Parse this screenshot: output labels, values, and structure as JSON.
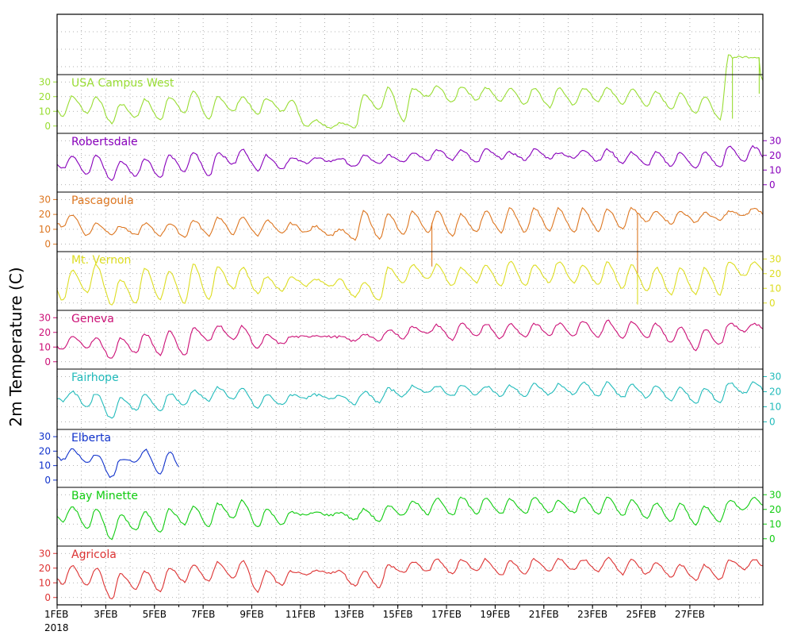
{
  "chart_data": {
    "type": "line",
    "ylabel": "2m Temperature (C)",
    "x_start_year": "2018",
    "x_ticks": [
      "1FEB",
      "3FEB",
      "5FEB",
      "7FEB",
      "9FEB",
      "11FEB",
      "13FEB",
      "15FEB",
      "17FEB",
      "19FEB",
      "21FEB",
      "23FEB",
      "25FEB",
      "27FEB"
    ],
    "x_range_days": [
      1,
      29
    ],
    "grid": true,
    "panel_ylim": [
      -5,
      35
    ],
    "panel_yticks": [
      0,
      10,
      20,
      30
    ],
    "series": [
      {
        "name": "USA Campus West",
        "color": "#99dd33",
        "axis_side": "left",
        "daily_min": [
          7,
          9,
          2,
          6,
          4,
          9,
          4,
          10,
          8,
          10,
          0,
          -1,
          -1,
          11,
          3,
          20,
          16,
          18,
          17,
          15,
          13,
          14,
          17,
          15,
          14,
          12,
          9,
          5,
          24
        ],
        "daily_max": [
          20,
          20,
          15,
          18,
          20,
          24,
          20,
          20,
          19,
          18,
          4,
          2,
          22,
          26,
          25,
          27,
          27,
          26,
          26,
          26,
          26,
          26,
          26,
          25,
          23,
          22,
          20,
          49,
          45
        ],
        "events": [
          {
            "type": "gap",
            "from_day": 10.3,
            "to_day": 10.6
          },
          {
            "type": "step",
            "day": 15.45,
            "from": 5,
            "to": 20
          },
          {
            "type": "drop",
            "day": 27.75,
            "to": 5
          },
          {
            "type": "high",
            "day_from": 27.8,
            "day_to": 28.85,
            "value": 47
          },
          {
            "type": "drop",
            "day": 28.85,
            "to": 22
          }
        ]
      },
      {
        "name": "Robertsdale",
        "color": "#8800bb",
        "axis_side": "right",
        "daily_min": [
          11,
          7,
          3,
          6,
          5,
          9,
          6,
          14,
          10,
          11,
          15,
          16,
          12,
          14,
          16,
          17,
          17,
          15,
          18,
          17,
          18,
          18,
          16,
          15,
          13,
          13,
          11,
          12,
          16
        ],
        "daily_max": [
          20,
          20,
          16,
          18,
          20,
          22,
          22,
          24,
          20,
          18,
          18,
          18,
          20,
          20,
          22,
          24,
          24,
          24,
          22,
          24,
          22,
          24,
          24,
          22,
          22,
          22,
          22,
          26,
          26
        ]
      },
      {
        "name": "Pascagoula",
        "color": "#dd7722",
        "axis_side": "left",
        "daily_min": [
          12,
          6,
          7,
          6,
          6,
          5,
          6,
          7,
          6,
          7,
          8,
          6,
          3,
          4,
          6,
          8,
          6,
          8,
          8,
          8,
          9,
          8,
          9,
          10,
          15,
          14,
          15,
          16,
          19
        ],
        "daily_max": [
          20,
          14,
          12,
          14,
          14,
          16,
          18,
          18,
          16,
          14,
          12,
          10,
          22,
          20,
          22,
          22,
          20,
          22,
          24,
          24,
          24,
          24,
          24,
          24,
          22,
          22,
          21,
          22,
          24
        ],
        "events": [
          {
            "type": "spike",
            "day": 15.4,
            "to": -15
          },
          {
            "type": "spike",
            "day": 23.85,
            "to": -25
          }
        ]
      },
      {
        "name": "Mt. Vernon",
        "color": "#dddd22",
        "axis_side": "right",
        "daily_min": [
          2,
          7,
          -1,
          0,
          3,
          0,
          3,
          10,
          7,
          8,
          12,
          12,
          4,
          2,
          14,
          16,
          12,
          14,
          12,
          12,
          14,
          14,
          12,
          10,
          8,
          6,
          6,
          6,
          18
        ],
        "daily_max": [
          22,
          26,
          16,
          24,
          22,
          26,
          24,
          24,
          18,
          18,
          16,
          16,
          14,
          24,
          26,
          26,
          24,
          26,
          28,
          26,
          28,
          26,
          28,
          26,
          24,
          24,
          24,
          28,
          28
        ],
        "events": [
          {
            "type": "spike",
            "day": 23.85,
            "to": -1
          }
        ]
      },
      {
        "name": "Geneva",
        "color": "#cc1177",
        "axis_side": "left",
        "daily_min": [
          8,
          10,
          2,
          6,
          5,
          4,
          14,
          15,
          9,
          12,
          17,
          17,
          14,
          14,
          16,
          19,
          15,
          17,
          16,
          17,
          18,
          18,
          17,
          16,
          16,
          13,
          8,
          12,
          21
        ],
        "daily_max": [
          17,
          16,
          16,
          19,
          21,
          23,
          25,
          24,
          18,
          17,
          18,
          17,
          19,
          22,
          24,
          25,
          26,
          26,
          26,
          26,
          26,
          28,
          28,
          27,
          26,
          24,
          22,
          26,
          26
        ]
      },
      {
        "name": "Fairhope",
        "color": "#22bbbb",
        "axis_side": "right",
        "daily_min": [
          14,
          10,
          2,
          8,
          7,
          11,
          14,
          15,
          9,
          11,
          16,
          15,
          12,
          13,
          17,
          19,
          17,
          18,
          17,
          17,
          18,
          18,
          17,
          16,
          16,
          14,
          12,
          13,
          19
        ],
        "daily_max": [
          20,
          19,
          16,
          18,
          19,
          21,
          23,
          22,
          18,
          18,
          18,
          18,
          20,
          22,
          24,
          24,
          24,
          24,
          24,
          25,
          25,
          26,
          26,
          25,
          24,
          23,
          22,
          26,
          26
        ]
      },
      {
        "name": "Elberta",
        "color": "#1133cc",
        "axis_side": "left",
        "daily_min": [
          14,
          12,
          2,
          13,
          4
        ],
        "daily_max": [
          21,
          18,
          14,
          21,
          19
        ]
      },
      {
        "name": "Bay Minette",
        "color": "#11cc11",
        "axis_side": "right",
        "daily_min": [
          12,
          7,
          0,
          6,
          5,
          10,
          8,
          14,
          8,
          10,
          16,
          16,
          13,
          12,
          16,
          17,
          16,
          17,
          17,
          17,
          18,
          18,
          17,
          16,
          14,
          12,
          10,
          12,
          20
        ],
        "daily_max": [
          22,
          20,
          16,
          18,
          20,
          22,
          24,
          26,
          20,
          18,
          18,
          18,
          20,
          22,
          26,
          28,
          28,
          28,
          27,
          28,
          26,
          28,
          28,
          26,
          24,
          24,
          22,
          26,
          28
        ]
      },
      {
        "name": "Agricola",
        "color": "#dd3333",
        "axis_side": "left",
        "daily_min": [
          9,
          8,
          -1,
          6,
          4,
          11,
          11,
          13,
          4,
          8,
          15,
          17,
          8,
          7,
          17,
          18,
          16,
          18,
          15,
          16,
          18,
          19,
          18,
          16,
          16,
          14,
          12,
          12,
          19
        ],
        "daily_max": [
          22,
          20,
          16,
          18,
          20,
          22,
          24,
          25,
          18,
          18,
          18,
          18,
          18,
          22,
          24,
          26,
          26,
          26,
          25,
          26,
          26,
          26,
          27,
          26,
          24,
          22,
          22,
          26,
          26
        ]
      }
    ]
  }
}
